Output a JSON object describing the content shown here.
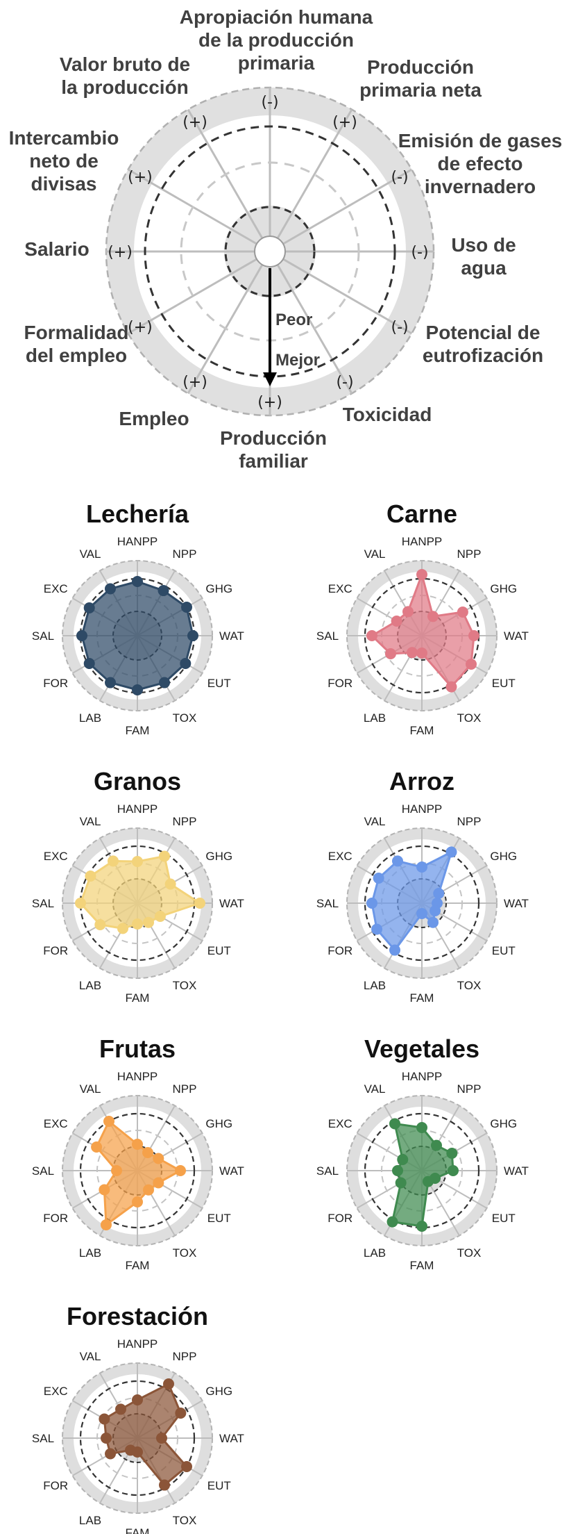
{
  "legend": {
    "axis_labels": [
      [
        "Apropiación humana",
        "de la producción",
        "primaria"
      ],
      [
        "Producción",
        "primaria neta"
      ],
      [
        "Emisión de gases",
        "de efecto",
        "invernadero"
      ],
      [
        "Uso de",
        "agua"
      ],
      [
        "Potencial de",
        "eutrofización"
      ],
      [
        "Toxicidad"
      ],
      [
        "Producción",
        "familiar"
      ],
      [
        "Empleo"
      ],
      [
        "Formalidad",
        "del empleo"
      ],
      [
        "Salario"
      ],
      [
        "Intercambio",
        "neto de",
        "divisas"
      ],
      [
        "Valor bruto de",
        "la producción"
      ]
    ],
    "signs": [
      "(-)",
      "(+)",
      "(-)",
      "(-)",
      "(-)",
      "(-)",
      "(+)",
      "(+)",
      "(+)",
      "(+)",
      "(+)",
      "(+)"
    ],
    "worse_label": "Peor",
    "better_label": "Mejor",
    "colors": {
      "ring": "#e0e0e0",
      "spoke": "#bdbdbd",
      "dashed": "#333333"
    }
  },
  "chart_data": [
    {
      "type": "radar",
      "title": "Lechería",
      "axes": [
        "HANPP",
        "NPP",
        "GHG",
        "WAT",
        "EUT",
        "TOX",
        "FAM",
        "LAB",
        "FOR",
        "SAL",
        "EXC",
        "VAL"
      ],
      "color": "#2e4a66",
      "values": [
        0.78,
        0.75,
        0.82,
        0.8,
        0.8,
        0.78,
        0.78,
        0.78,
        0.8,
        0.8,
        0.8,
        0.78
      ]
    },
    {
      "type": "radar",
      "title": "Carne",
      "axes": [
        "HANPP",
        "NPP",
        "GHG",
        "WAT",
        "EUT",
        "TOX",
        "FAM",
        "LAB",
        "FOR",
        "SAL",
        "EXC",
        "VAL"
      ],
      "color": "#e07a86",
      "values": [
        0.88,
        0.32,
        0.68,
        0.75,
        0.82,
        0.85,
        0.25,
        0.28,
        0.52,
        0.72,
        0.42,
        0.4
      ]
    },
    {
      "type": "radar",
      "title": "Granos",
      "axes": [
        "HANPP",
        "NPP",
        "GHG",
        "WAT",
        "EUT",
        "TOX",
        "FAM",
        "LAB",
        "FOR",
        "SAL",
        "EXC",
        "VAL"
      ],
      "color": "#f3d37a",
      "values": [
        0.6,
        0.78,
        0.55,
        0.9,
        0.38,
        0.32,
        0.3,
        0.42,
        0.62,
        0.82,
        0.78,
        0.7
      ]
    },
    {
      "type": "radar",
      "title": "Arroz",
      "axes": [
        "HANPP",
        "NPP",
        "GHG",
        "WAT",
        "EUT",
        "TOX",
        "FAM",
        "LAB",
        "FOR",
        "SAL",
        "EXC",
        "VAL"
      ],
      "color": "#6b97e8",
      "values": [
        0.52,
        0.85,
        0.28,
        0.22,
        0.22,
        0.32,
        0.15,
        0.78,
        0.75,
        0.72,
        0.72,
        0.7
      ]
    },
    {
      "type": "radar",
      "title": "Frutas",
      "axes": [
        "HANPP",
        "NPP",
        "GHG",
        "WAT",
        "EUT",
        "TOX",
        "FAM",
        "LAB",
        "FOR",
        "SAL",
        "EXC",
        "VAL"
      ],
      "color": "#f5a14a",
      "values": [
        0.38,
        0.3,
        0.35,
        0.62,
        0.35,
        0.32,
        0.45,
        0.9,
        0.55,
        0.3,
        0.68,
        0.82
      ]
    },
    {
      "type": "radar",
      "title": "Vegetales",
      "axes": [
        "HANPP",
        "NPP",
        "GHG",
        "WAT",
        "EUT",
        "TOX",
        "FAM",
        "LAB",
        "FOR",
        "SAL",
        "EXC",
        "VAL"
      ],
      "color": "#3f8a4f",
      "values": [
        0.62,
        0.42,
        0.5,
        0.45,
        0.22,
        0.18,
        0.8,
        0.85,
        0.35,
        0.35,
        0.32,
        0.78
      ]
    },
    {
      "type": "radar",
      "title": "Forestación",
      "axes": [
        "HANPP",
        "NPP",
        "GHG",
        "WAT",
        "EUT",
        "TOX",
        "FAM",
        "LAB",
        "FOR",
        "SAL",
        "EXC",
        "VAL"
      ],
      "color": "#8b5538",
      "values": [
        0.55,
        0.9,
        0.72,
        0.35,
        0.82,
        0.78,
        0.2,
        0.2,
        0.45,
        0.45,
        0.55,
        0.48
      ]
    }
  ]
}
